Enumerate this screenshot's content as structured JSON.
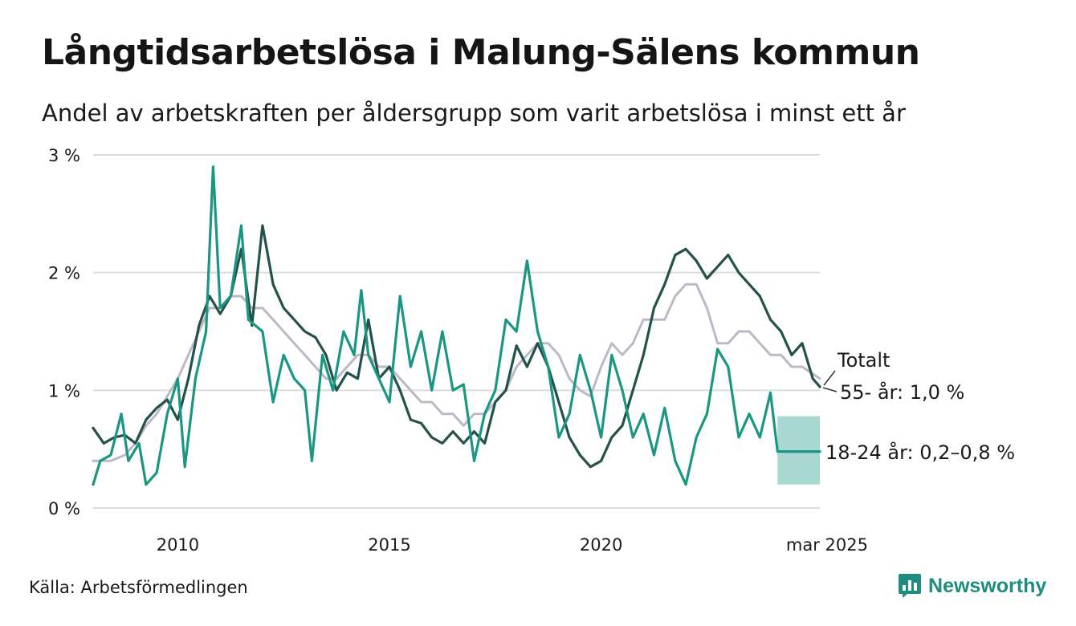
{
  "header": {
    "title": "Långtidsarbetslösa i Malung-Sälens kommun",
    "subtitle": "Andel av arbetskraften per åldersgrupp som varit arbetslösa i minst ett år"
  },
  "footer": {
    "source": "Källa: Arbetsförmedlingen",
    "brand": "Newsworthy"
  },
  "colors": {
    "total": "#bdb8c8",
    "age55": "#24524a",
    "age1824": "#1a9683",
    "band": "#a8d8d1",
    "grid": "#dcdcdc",
    "brand": "#1e8c7e"
  },
  "chart_data": {
    "type": "line",
    "x_domain": [
      "2008-01",
      "2025-03"
    ],
    "ylim": [
      0,
      3
    ],
    "y_ticks": [
      {
        "value": 3,
        "label": "3 %"
      },
      {
        "value": 2,
        "label": "2 %"
      },
      {
        "value": 1,
        "label": "1 %"
      },
      {
        "value": 0,
        "label": "0 %"
      }
    ],
    "x_ticks": [
      {
        "value": "2010-01",
        "label": "2010"
      },
      {
        "value": "2015-01",
        "label": "2015"
      },
      {
        "value": "2020-01",
        "label": "2020"
      },
      {
        "value": "2025-03",
        "label": "mar 2025"
      }
    ],
    "grid": true,
    "series": [
      {
        "key": "total",
        "name": "Totalt",
        "points": [
          [
            "2008-01",
            0.4
          ],
          [
            "2008-06",
            0.4
          ],
          [
            "2008-10",
            0.45
          ],
          [
            "2009-01",
            0.55
          ],
          [
            "2009-04",
            0.7
          ],
          [
            "2009-07",
            0.8
          ],
          [
            "2009-10",
            0.95
          ],
          [
            "2010-01",
            1.1
          ],
          [
            "2010-04",
            1.3
          ],
          [
            "2010-07",
            1.5
          ],
          [
            "2010-10",
            1.7
          ],
          [
            "2011-01",
            1.7
          ],
          [
            "2011-04",
            1.8
          ],
          [
            "2011-07",
            1.8
          ],
          [
            "2011-10",
            1.7
          ],
          [
            "2012-01",
            1.7
          ],
          [
            "2012-04",
            1.6
          ],
          [
            "2012-07",
            1.5
          ],
          [
            "2012-10",
            1.4
          ],
          [
            "2013-01",
            1.3
          ],
          [
            "2013-04",
            1.2
          ],
          [
            "2013-07",
            1.1
          ],
          [
            "2013-10",
            1.1
          ],
          [
            "2014-01",
            1.2
          ],
          [
            "2014-04",
            1.3
          ],
          [
            "2014-07",
            1.3
          ],
          [
            "2014-10",
            1.2
          ],
          [
            "2015-01",
            1.2
          ],
          [
            "2015-04",
            1.1
          ],
          [
            "2015-07",
            1.0
          ],
          [
            "2015-10",
            0.9
          ],
          [
            "2016-01",
            0.9
          ],
          [
            "2016-04",
            0.8
          ],
          [
            "2016-07",
            0.8
          ],
          [
            "2016-10",
            0.7
          ],
          [
            "2017-01",
            0.8
          ],
          [
            "2017-04",
            0.8
          ],
          [
            "2017-07",
            0.9
          ],
          [
            "2017-10",
            1.0
          ],
          [
            "2018-01",
            1.2
          ],
          [
            "2018-04",
            1.3
          ],
          [
            "2018-07",
            1.4
          ],
          [
            "2018-10",
            1.4
          ],
          [
            "2019-01",
            1.3
          ],
          [
            "2019-04",
            1.1
          ],
          [
            "2019-07",
            1.0
          ],
          [
            "2019-10",
            0.95
          ],
          [
            "2020-01",
            1.2
          ],
          [
            "2020-04",
            1.4
          ],
          [
            "2020-07",
            1.3
          ],
          [
            "2020-10",
            1.4
          ],
          [
            "2021-01",
            1.6
          ],
          [
            "2021-04",
            1.6
          ],
          [
            "2021-07",
            1.6
          ],
          [
            "2021-10",
            1.8
          ],
          [
            "2022-01",
            1.9
          ],
          [
            "2022-04",
            1.9
          ],
          [
            "2022-07",
            1.7
          ],
          [
            "2022-10",
            1.4
          ],
          [
            "2023-01",
            1.4
          ],
          [
            "2023-04",
            1.5
          ],
          [
            "2023-07",
            1.5
          ],
          [
            "2023-10",
            1.4
          ],
          [
            "2024-01",
            1.3
          ],
          [
            "2024-04",
            1.3
          ],
          [
            "2024-07",
            1.2
          ],
          [
            "2024-10",
            1.2
          ],
          [
            "2025-03",
            1.1
          ]
        ]
      },
      {
        "key": "age55",
        "name": "55- år: 1,0 %",
        "points": [
          [
            "2008-01",
            0.68
          ],
          [
            "2008-04",
            0.55
          ],
          [
            "2008-07",
            0.6
          ],
          [
            "2008-10",
            0.62
          ],
          [
            "2009-01",
            0.55
          ],
          [
            "2009-04",
            0.75
          ],
          [
            "2009-07",
            0.85
          ],
          [
            "2009-10",
            0.92
          ],
          [
            "2010-01",
            0.75
          ],
          [
            "2010-04",
            1.1
          ],
          [
            "2010-07",
            1.55
          ],
          [
            "2010-10",
            1.8
          ],
          [
            "2011-01",
            1.65
          ],
          [
            "2011-04",
            1.8
          ],
          [
            "2011-07",
            2.2
          ],
          [
            "2011-10",
            1.55
          ],
          [
            "2012-01",
            2.4
          ],
          [
            "2012-04",
            1.9
          ],
          [
            "2012-07",
            1.7
          ],
          [
            "2012-10",
            1.6
          ],
          [
            "2013-01",
            1.5
          ],
          [
            "2013-04",
            1.45
          ],
          [
            "2013-07",
            1.3
          ],
          [
            "2013-10",
            1.0
          ],
          [
            "2014-01",
            1.15
          ],
          [
            "2014-04",
            1.1
          ],
          [
            "2014-07",
            1.6
          ],
          [
            "2014-10",
            1.1
          ],
          [
            "2015-01",
            1.2
          ],
          [
            "2015-04",
            1.0
          ],
          [
            "2015-07",
            0.75
          ],
          [
            "2015-10",
            0.72
          ],
          [
            "2016-01",
            0.6
          ],
          [
            "2016-04",
            0.55
          ],
          [
            "2016-07",
            0.65
          ],
          [
            "2016-10",
            0.55
          ],
          [
            "2017-01",
            0.65
          ],
          [
            "2017-04",
            0.55
          ],
          [
            "2017-07",
            0.9
          ],
          [
            "2017-10",
            1.0
          ],
          [
            "2018-01",
            1.38
          ],
          [
            "2018-04",
            1.2
          ],
          [
            "2018-07",
            1.4
          ],
          [
            "2018-10",
            1.2
          ],
          [
            "2019-01",
            0.9
          ],
          [
            "2019-04",
            0.6
          ],
          [
            "2019-07",
            0.45
          ],
          [
            "2019-10",
            0.35
          ],
          [
            "2020-01",
            0.4
          ],
          [
            "2020-04",
            0.6
          ],
          [
            "2020-07",
            0.7
          ],
          [
            "2020-10",
            1.0
          ],
          [
            "2021-01",
            1.3
          ],
          [
            "2021-04",
            1.7
          ],
          [
            "2021-07",
            1.9
          ],
          [
            "2021-10",
            2.15
          ],
          [
            "2022-01",
            2.2
          ],
          [
            "2022-04",
            2.1
          ],
          [
            "2022-07",
            1.95
          ],
          [
            "2022-10",
            2.05
          ],
          [
            "2023-01",
            2.15
          ],
          [
            "2023-04",
            2.0
          ],
          [
            "2023-07",
            1.9
          ],
          [
            "2023-10",
            1.8
          ],
          [
            "2024-01",
            1.6
          ],
          [
            "2024-04",
            1.5
          ],
          [
            "2024-07",
            1.3
          ],
          [
            "2024-10",
            1.4
          ],
          [
            "2025-01",
            1.1
          ],
          [
            "2025-03",
            1.03
          ]
        ]
      },
      {
        "key": "age1824",
        "name": "18-24 år: 0,2–0,8 %",
        "points": [
          [
            "2008-01",
            0.2
          ],
          [
            "2008-03",
            0.4
          ],
          [
            "2008-06",
            0.45
          ],
          [
            "2008-09",
            0.8
          ],
          [
            "2008-11",
            0.4
          ],
          [
            "2009-02",
            0.55
          ],
          [
            "2009-04",
            0.2
          ],
          [
            "2009-07",
            0.3
          ],
          [
            "2009-10",
            0.8
          ],
          [
            "2010-01",
            1.1
          ],
          [
            "2010-03",
            0.35
          ],
          [
            "2010-06",
            1.1
          ],
          [
            "2010-09",
            1.5
          ],
          [
            "2010-11",
            2.9
          ],
          [
            "2011-01",
            1.7
          ],
          [
            "2011-04",
            1.8
          ],
          [
            "2011-07",
            2.4
          ],
          [
            "2011-09",
            1.6
          ],
          [
            "2012-01",
            1.5
          ],
          [
            "2012-04",
            0.9
          ],
          [
            "2012-07",
            1.3
          ],
          [
            "2012-10",
            1.1
          ],
          [
            "2013-01",
            1.0
          ],
          [
            "2013-03",
            0.4
          ],
          [
            "2013-06",
            1.3
          ],
          [
            "2013-09",
            1.0
          ],
          [
            "2013-12",
            1.5
          ],
          [
            "2014-03",
            1.3
          ],
          [
            "2014-05",
            1.85
          ],
          [
            "2014-07",
            1.3
          ],
          [
            "2014-10",
            1.1
          ],
          [
            "2015-01",
            0.9
          ],
          [
            "2015-04",
            1.8
          ],
          [
            "2015-07",
            1.2
          ],
          [
            "2015-10",
            1.5
          ],
          [
            "2016-01",
            1.0
          ],
          [
            "2016-04",
            1.5
          ],
          [
            "2016-07",
            1.0
          ],
          [
            "2016-10",
            1.05
          ],
          [
            "2017-01",
            0.4
          ],
          [
            "2017-04",
            0.8
          ],
          [
            "2017-07",
            1.0
          ],
          [
            "2017-10",
            1.6
          ],
          [
            "2018-01",
            1.5
          ],
          [
            "2018-04",
            2.1
          ],
          [
            "2018-07",
            1.5
          ],
          [
            "2018-10",
            1.2
          ],
          [
            "2019-01",
            0.6
          ],
          [
            "2019-04",
            0.8
          ],
          [
            "2019-07",
            1.3
          ],
          [
            "2019-10",
            1.0
          ],
          [
            "2020-01",
            0.6
          ],
          [
            "2020-04",
            1.3
          ],
          [
            "2020-07",
            1.0
          ],
          [
            "2020-10",
            0.6
          ],
          [
            "2021-01",
            0.8
          ],
          [
            "2021-04",
            0.45
          ],
          [
            "2021-07",
            0.85
          ],
          [
            "2021-10",
            0.4
          ],
          [
            "2022-01",
            0.2
          ],
          [
            "2022-04",
            0.6
          ],
          [
            "2022-07",
            0.8
          ],
          [
            "2022-10",
            1.35
          ],
          [
            "2023-01",
            1.2
          ],
          [
            "2023-04",
            0.6
          ],
          [
            "2023-07",
            0.8
          ],
          [
            "2023-10",
            0.6
          ],
          [
            "2024-01",
            0.98
          ],
          [
            "2024-03",
            0.48
          ],
          [
            "2025-03",
            0.48
          ]
        ]
      }
    ],
    "band": {
      "series": "age1824",
      "x": [
        "2024-03",
        "2025-03"
      ],
      "lower": 0.2,
      "upper": 0.78
    },
    "end_labels": [
      {
        "series": "total",
        "text": "Totalt"
      },
      {
        "series": "age55",
        "text": "55- år: 1,0 %"
      },
      {
        "series": "age1824",
        "text": "18-24 år: 0,2–0,8 %"
      }
    ]
  }
}
